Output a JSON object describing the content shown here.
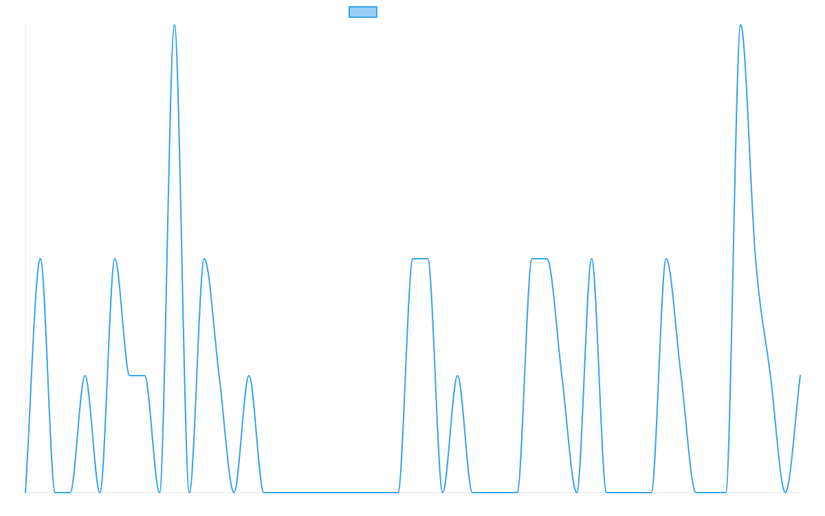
{
  "chart_data": {
    "type": "line",
    "title": "",
    "xlabel": "",
    "ylabel": "",
    "grid": false,
    "legend": {
      "position": "top-center",
      "entries": [
        {
          "name": ""
        }
      ]
    },
    "ylim": [
      0,
      4
    ],
    "x": [
      0,
      1,
      2,
      3,
      4,
      5,
      6,
      7,
      8,
      9,
      10,
      11,
      12,
      13,
      14,
      15,
      16,
      17,
      18,
      19,
      20,
      21,
      22,
      23,
      24,
      25,
      26,
      27,
      28,
      29,
      30,
      31,
      32,
      33,
      34,
      35,
      36,
      37,
      38,
      39,
      40,
      41,
      42,
      43,
      44,
      45,
      46,
      47,
      48,
      49,
      50,
      51,
      52
    ],
    "series": [
      {
        "name": "",
        "color": "#36a2eb",
        "fill": "#9ad0f5",
        "values": [
          0,
          2,
          0,
          0,
          1,
          0,
          2,
          1,
          1,
          0,
          4,
          0,
          2,
          1,
          0,
          1,
          0,
          0,
          0,
          0,
          0,
          0,
          0,
          0,
          0,
          0,
          2,
          2,
          0,
          1,
          0,
          0,
          0,
          0,
          2,
          2,
          1,
          0,
          2,
          0,
          0,
          0,
          0,
          2,
          1,
          0,
          0,
          0,
          4,
          2,
          1,
          0,
          1
        ]
      }
    ]
  }
}
